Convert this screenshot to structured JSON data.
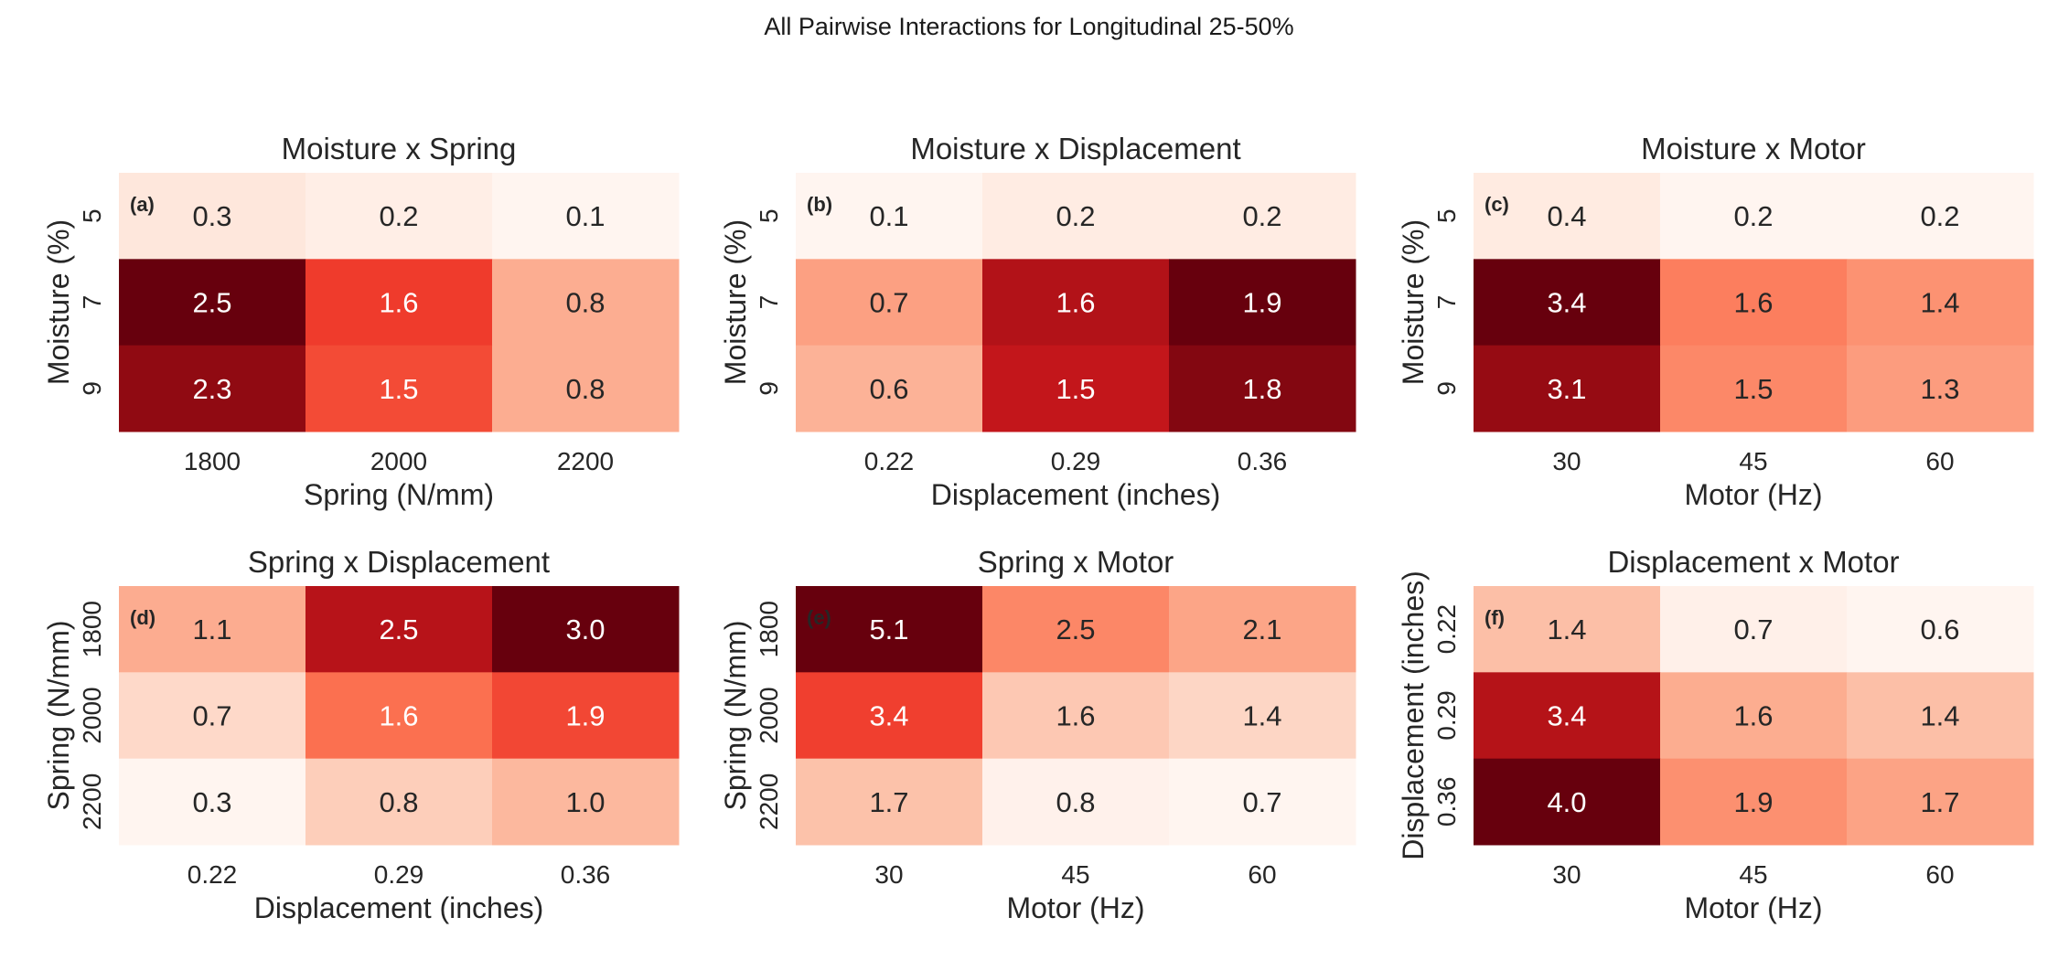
{
  "figure": {
    "suptitle": "All Pairwise Interactions for Longitudinal 25-50%"
  },
  "chart_data": [
    {
      "type": "heatmap",
      "panel": "(a)",
      "title": "Moisture x Spring",
      "ylabel": "Moisture (%)",
      "xlabel": "Spring (N/mm)",
      "rows": [
        "5",
        "7",
        "9"
      ],
      "cols": [
        "1800",
        "2000",
        "2200"
      ],
      "values": [
        [
          0.3,
          0.2,
          0.1
        ],
        [
          2.5,
          1.6,
          0.8
        ],
        [
          2.3,
          1.5,
          0.8
        ]
      ],
      "colormap": "Reds"
    },
    {
      "type": "heatmap",
      "panel": "(b)",
      "title": "Moisture x Displacement",
      "ylabel": "Moisture (%)",
      "xlabel": "Displacement (inches)",
      "rows": [
        "5",
        "7",
        "9"
      ],
      "cols": [
        "0.22",
        "0.29",
        "0.36"
      ],
      "values": [
        [
          0.1,
          0.2,
          0.2
        ],
        [
          0.7,
          1.6,
          1.9
        ],
        [
          0.6,
          1.5,
          1.8
        ]
      ],
      "colormap": "Reds"
    },
    {
      "type": "heatmap",
      "panel": "(c)",
      "title": "Moisture x Motor",
      "ylabel": "Moisture (%)",
      "xlabel": "Motor (Hz)",
      "rows": [
        "5",
        "7",
        "9"
      ],
      "cols": [
        "30",
        "45",
        "60"
      ],
      "values": [
        [
          0.4,
          0.2,
          0.2
        ],
        [
          3.4,
          1.6,
          1.4
        ],
        [
          3.1,
          1.5,
          1.3
        ]
      ],
      "colormap": "Reds"
    },
    {
      "type": "heatmap",
      "panel": "(d)",
      "title": "Spring x Displacement",
      "ylabel": "Spring (N/mm)",
      "xlabel": "Displacement (inches)",
      "rows": [
        "1800",
        "2000",
        "2200"
      ],
      "cols": [
        "0.22",
        "0.29",
        "0.36"
      ],
      "values": [
        [
          1.1,
          2.5,
          3.0
        ],
        [
          0.7,
          1.6,
          1.9
        ],
        [
          0.3,
          0.8,
          1.0
        ]
      ],
      "colormap": "Reds"
    },
    {
      "type": "heatmap",
      "panel": "(e)",
      "title": "Spring x Motor",
      "ylabel": "Spring (N/mm)",
      "xlabel": "Motor (Hz)",
      "rows": [
        "1800",
        "2000",
        "2200"
      ],
      "cols": [
        "30",
        "45",
        "60"
      ],
      "values": [
        [
          5.1,
          2.5,
          2.1
        ],
        [
          3.4,
          1.6,
          1.4
        ],
        [
          1.7,
          0.8,
          0.7
        ]
      ],
      "colormap": "Reds"
    },
    {
      "type": "heatmap",
      "panel": "(f)",
      "title": "Displacement x Motor",
      "ylabel": "Displacement (inches)",
      "xlabel": "Motor (Hz)",
      "rows": [
        "0.22",
        "0.29",
        "0.36"
      ],
      "cols": [
        "30",
        "45",
        "60"
      ],
      "values": [
        [
          1.4,
          0.7,
          0.6
        ],
        [
          3.4,
          1.6,
          1.4
        ],
        [
          4.0,
          1.9,
          1.7
        ]
      ],
      "colormap": "Reds"
    }
  ]
}
